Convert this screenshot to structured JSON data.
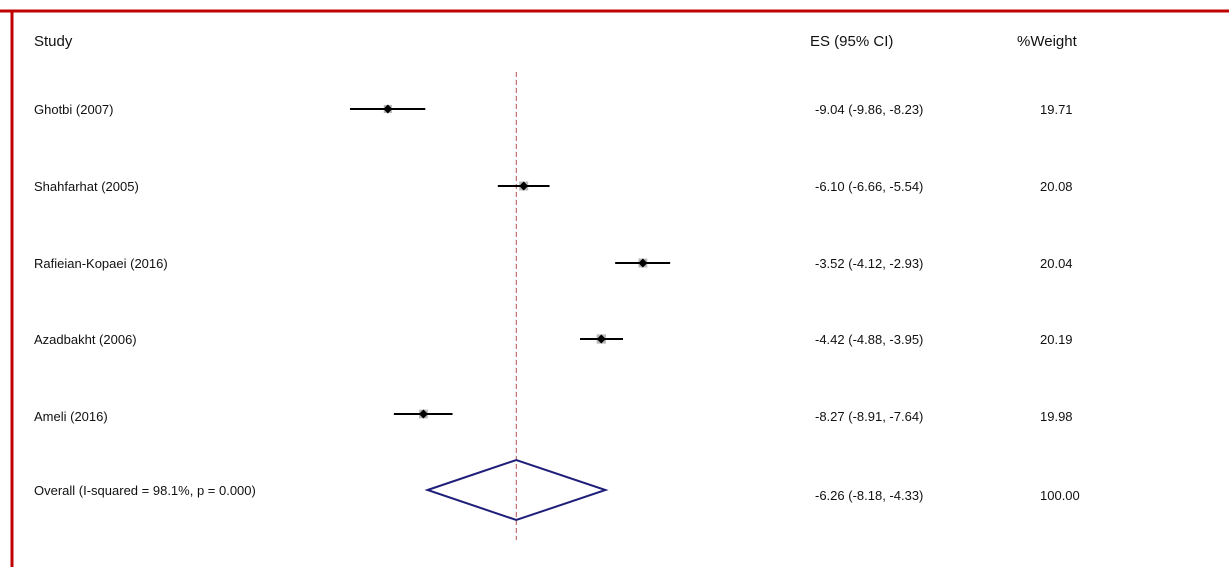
{
  "colors": {
    "frame": "#c00000",
    "reference_line": "#b05050",
    "marker": "#000000",
    "weight_box": "#b8b8b8",
    "diamond": "#1f1f7a"
  },
  "headers": {
    "study": "Study",
    "es": "ES (95% CI)",
    "weight": "%Weight"
  },
  "chart_data": {
    "type": "forest",
    "null_line": -6.26,
    "xlim": [
      -11.05,
      -0.66
    ],
    "studies": [
      {
        "label": "Ghotbi (2007)",
        "es": -9.04,
        "lo": -9.86,
        "hi": -8.23,
        "es_text": "-9.04 (-9.86, -8.23)",
        "weight": "19.71"
      },
      {
        "label": "Shahfarhat (2005)",
        "es": -6.1,
        "lo": -6.66,
        "hi": -5.54,
        "es_text": "-6.10 (-6.66, -5.54)",
        "weight": "20.08"
      },
      {
        "label": "Rafieian-Kopaei (2016)",
        "es": -3.52,
        "lo": -4.12,
        "hi": -2.93,
        "es_text": "-3.52 (-4.12, -2.93)",
        "weight": "20.04"
      },
      {
        "label": "Azadbakht (2006)",
        "es": -4.42,
        "lo": -4.88,
        "hi": -3.95,
        "es_text": "-4.42 (-4.88, -3.95)",
        "weight": "20.19"
      },
      {
        "label": "Ameli (2016)",
        "es": -8.27,
        "lo": -8.91,
        "hi": -7.64,
        "es_text": "-8.27 (-8.91, -7.64)",
        "weight": "19.98"
      }
    ],
    "overall": {
      "label": "Overall  (I-squared = 98.1%, p = 0.000)",
      "es": -6.26,
      "lo": -8.18,
      "hi": -4.33,
      "es_text": "-6.26 (-8.18, -4.33)",
      "weight": "100.00"
    }
  }
}
